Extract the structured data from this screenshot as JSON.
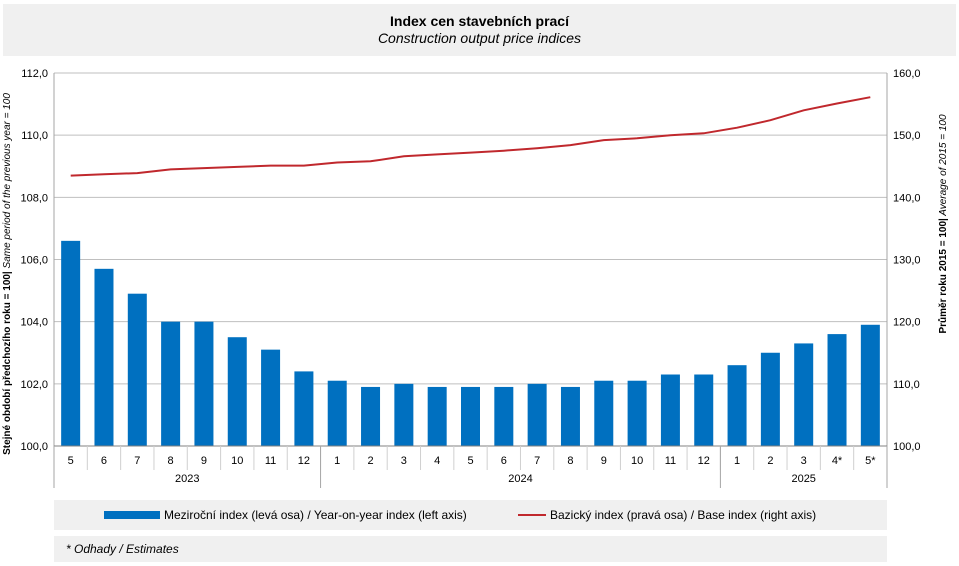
{
  "title": "Index cen stavebních prací",
  "subtitle": "Construction output price indices",
  "chart_data": {
    "type": "bar+line",
    "categories": [
      "5",
      "6",
      "7",
      "8",
      "9",
      "10",
      "11",
      "12",
      "1",
      "2",
      "3",
      "4",
      "5",
      "6",
      "7",
      "8",
      "9",
      "10",
      "11",
      "12",
      "1",
      "2",
      "3",
      "4*",
      "5*"
    ],
    "years": [
      {
        "label": "2023",
        "from": 0,
        "to": 7
      },
      {
        "label": "2024",
        "from": 8,
        "to": 19
      },
      {
        "label": "2025",
        "from": 20,
        "to": 24
      }
    ],
    "series": [
      {
        "name": "Meziroční index (levá osa) / Year-on-year index (left axis)",
        "type": "bar",
        "axis": "left",
        "values": [
          106.6,
          105.7,
          104.9,
          104.0,
          104.0,
          103.5,
          103.1,
          102.4,
          102.1,
          101.9,
          102.0,
          101.9,
          101.9,
          101.9,
          102.0,
          101.9,
          102.1,
          102.1,
          102.3,
          102.3,
          102.6,
          103.0,
          103.3,
          103.6,
          103.9
        ]
      },
      {
        "name": "Bazický index (pravá osa) / Base index (right axis)",
        "type": "line",
        "axis": "right",
        "values": [
          143.5,
          143.7,
          143.9,
          144.5,
          144.7,
          144.9,
          145.1,
          145.1,
          145.6,
          145.8,
          146.6,
          146.9,
          147.2,
          147.5,
          147.9,
          148.4,
          149.2,
          149.5,
          150.0,
          150.3,
          151.2,
          152.4,
          154.0,
          155.1,
          156.1
        ]
      }
    ],
    "y_left": {
      "label": "Stejné období předchozího roku = 100| Same period of  the previous year = 100",
      "min": 100,
      "max": 112,
      "step": 2
    },
    "y_right": {
      "label": "Průměr roku 2015 = 100| Average of 2015 = 100",
      "min": 100,
      "max": 160,
      "step": 10
    },
    "grid": true
  },
  "legend": {
    "bar_label": "Meziroční index (levá osa) / Year-on-year index (left axis)",
    "line_label": "Bazický index (pravá osa) / Base index (right axis)"
  },
  "note": "* Odhady / Estimates",
  "colors": {
    "bar": "#0070c0",
    "line": "#c0282d",
    "grid": "#bfbfbf",
    "panel": "#f0f0f0"
  }
}
